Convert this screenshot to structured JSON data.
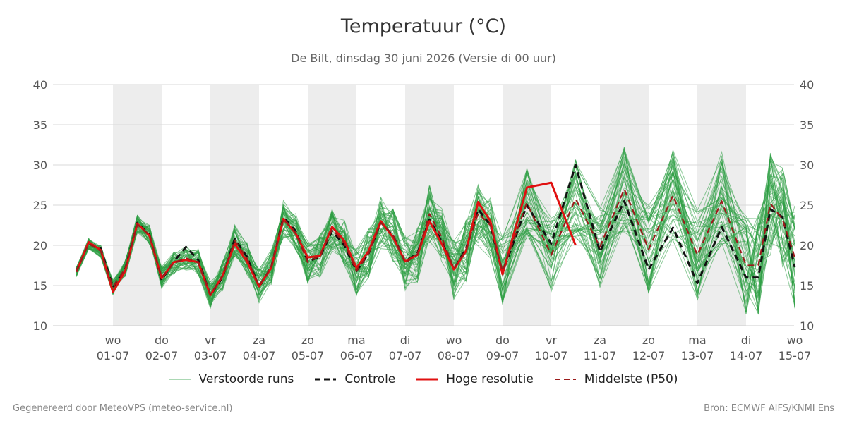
{
  "chart_data": {
    "type": "line",
    "title": "Temperatuur (°C)",
    "subtitle": "De Bilt, dinsdag 30 juni 2026 (Versie di 00 uur)",
    "ylim": [
      10,
      40
    ],
    "yticks": [
      "10",
      "15",
      "20",
      "25",
      "30",
      "35",
      "40"
    ],
    "xlim": [
      -0.75,
      14
    ],
    "x_ticks": [
      {
        "day": "wo",
        "date": "01-07"
      },
      {
        "day": "do",
        "date": "02-07"
      },
      {
        "day": "vr",
        "date": "03-07"
      },
      {
        "day": "za",
        "date": "04-07"
      },
      {
        "day": "zo",
        "date": "05-07"
      },
      {
        "day": "ma",
        "date": "06-07"
      },
      {
        "day": "di",
        "date": "07-07"
      },
      {
        "day": "wo",
        "date": "08-07"
      },
      {
        "day": "do",
        "date": "09-07"
      },
      {
        "day": "vr",
        "date": "10-07"
      },
      {
        "day": "za",
        "date": "11-07"
      },
      {
        "day": "zo",
        "date": "12-07"
      },
      {
        "day": "ma",
        "date": "13-07"
      },
      {
        "day": "di",
        "date": "14-07"
      },
      {
        "day": "wo",
        "date": "15-07"
      }
    ],
    "shaded_day_indices": [
      0,
      2,
      4,
      6,
      8,
      10,
      12
    ],
    "grid": true,
    "legend_position": "bottom",
    "x_days": [
      -0.75,
      -0.5,
      -0.25,
      0,
      0.25,
      0.5,
      0.75,
      1,
      1.25,
      1.5,
      1.75,
      2,
      2.25,
      2.5,
      2.75,
      3,
      3.25,
      3.5,
      3.75,
      4,
      4.25,
      4.5,
      4.75,
      5,
      5.25,
      5.5,
      5.75,
      6,
      6.25,
      6.5,
      6.75,
      7,
      7.25,
      7.5,
      7.75,
      8,
      8.5,
      9,
      9.5,
      10,
      10.5,
      11,
      11.5,
      12,
      12.5,
      13,
      13.25,
      13.5,
      13.75,
      14
    ],
    "series": [
      {
        "name": "Controle",
        "style": "dashed",
        "color": "#111111",
        "values": [
          16.8,
          20.3,
          19.6,
          14.8,
          17.0,
          22.8,
          21.3,
          15.7,
          18.0,
          19.8,
          18.2,
          13.8,
          16.0,
          20.8,
          18.6,
          14.8,
          17.3,
          23.5,
          21.8,
          18.0,
          18.6,
          21.8,
          20.0,
          16.8,
          19.0,
          22.9,
          21.2,
          18.0,
          19.0,
          23.2,
          20.5,
          17.0,
          19.6,
          24.5,
          22.5,
          16.6,
          25.0,
          20.2,
          30.0,
          19.2,
          25.5,
          17.0,
          22.2,
          15.3,
          22.3,
          16.0,
          16.0,
          24.5,
          23.5,
          17.3
        ]
      },
      {
        "name": "Hoge resolutie",
        "style": "solid",
        "color": "#e01010",
        "values": [
          16.7,
          20.4,
          19.4,
          14.2,
          16.8,
          22.7,
          21.2,
          15.9,
          17.9,
          18.2,
          17.9,
          13.8,
          16.2,
          20.2,
          18.0,
          14.9,
          17.2,
          23.3,
          21.5,
          18.5,
          18.7,
          22.3,
          20.6,
          17.2,
          19.3,
          23.0,
          21.0,
          18.0,
          18.8,
          23.0,
          20.2,
          17.0,
          19.3,
          25.4,
          23.0,
          16.4,
          27.2,
          27.8,
          20.0
        ]
      },
      {
        "name": "Middelste (P50)",
        "style": "dashed",
        "color": "#9b1b1b",
        "values": [
          16.7,
          20.2,
          19.3,
          14.8,
          17.1,
          22.6,
          21.3,
          16.0,
          17.8,
          18.4,
          17.9,
          13.9,
          16.2,
          20.6,
          18.4,
          15.0,
          17.3,
          23.3,
          21.6,
          17.9,
          18.7,
          22.0,
          20.3,
          16.8,
          19.0,
          22.8,
          21.3,
          17.8,
          18.9,
          23.9,
          21.0,
          17.1,
          19.4,
          24.0,
          22.5,
          16.8,
          25.3,
          18.8,
          25.8,
          19.8,
          27.0,
          19.5,
          26.2,
          18.8,
          25.5,
          17.5,
          17.5,
          25.2,
          23.2,
          18.5
        ]
      }
    ],
    "ensemble": {
      "name": "Verstoorde runs",
      "color": "#2e9e44",
      "member_count": 50
    }
  },
  "footer": {
    "left": "Gegenereerd door MeteoVPS (meteo-service.nl)",
    "right": "Bron: ECMWF AIFS/KNMI Ens"
  }
}
